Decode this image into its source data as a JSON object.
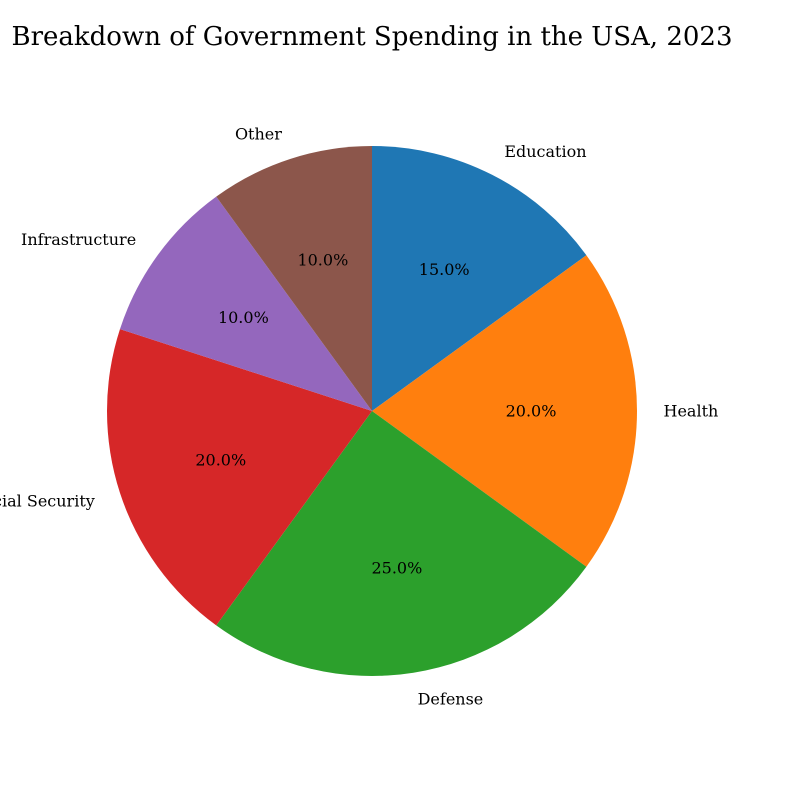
{
  "chart_data": {
    "type": "pie",
    "title": "Breakdown of Government Spending in the USA, 2023",
    "categories": [
      "Education",
      "Health",
      "Defense",
      "Social Security",
      "Infrastructure",
      "Other"
    ],
    "values": [
      15.0,
      20.0,
      25.0,
      20.0,
      10.0,
      10.0
    ],
    "value_labels": [
      "15.0%",
      "20.0%",
      "25.0%",
      "20.0%",
      "10.0%",
      "10.0%"
    ],
    "colors": [
      "#1f77b4",
      "#ff7f0e",
      "#2ca02c",
      "#d62728",
      "#9467bd",
      "#8c564b"
    ],
    "start_angle_deg": 90,
    "direction": "clockwise",
    "legend": "none"
  }
}
